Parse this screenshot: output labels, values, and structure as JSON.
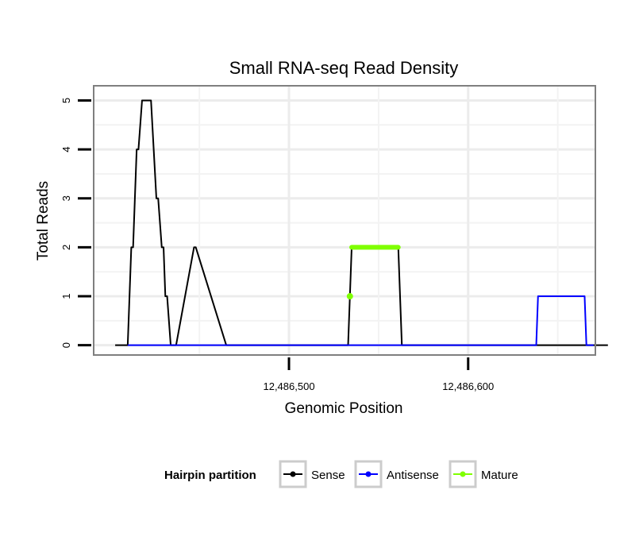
{
  "chart_data": {
    "type": "line",
    "title": "Small RNA-seq Read Density",
    "xlabel": "Genomic Position",
    "ylabel": "Total Reads",
    "xlim": [
      12486391,
      12486671
    ],
    "ylim": [
      -0.2,
      5.3
    ],
    "x_ticks": [
      12486500,
      12486600
    ],
    "x_tick_labels": [
      "12,486,500",
      "12,486,600"
    ],
    "y_ticks": [
      0,
      1,
      2,
      3,
      4,
      5
    ],
    "y_tick_labels": [
      "0",
      "1",
      "2",
      "3",
      "4",
      "5"
    ],
    "grid": true,
    "legend": {
      "title": "Hairpin partition",
      "position": "bottom",
      "entries": [
        "Sense",
        "Antisense",
        "Mature"
      ]
    },
    "series": [
      {
        "name": "Sense",
        "color": "#000000",
        "x": [
          12486403,
          12486410,
          12486412,
          12486413,
          12486415,
          12486416,
          12486418,
          12486419,
          12486422,
          12486423,
          12486426,
          12486427,
          12486429,
          12486430,
          12486431,
          12486432,
          12486434,
          12486435,
          12486436,
          12486437,
          12486447,
          12486448,
          12486465,
          12486467,
          12486488,
          12486533,
          12486535,
          12486561,
          12486563,
          12486652,
          12486654,
          12486661,
          12486663,
          12486678
        ],
        "values": [
          0,
          0,
          2,
          2,
          4,
          4,
          5,
          5,
          5,
          5,
          3,
          3,
          2,
          2,
          1,
          1,
          0,
          0,
          0,
          0,
          2,
          2,
          0,
          0,
          0,
          0,
          2,
          2,
          0,
          0,
          0,
          0,
          0,
          0
        ]
      },
      {
        "name": "Antisense",
        "color": "#0000ff",
        "x": [
          12486410,
          12486448,
          12486465,
          12486533,
          12486561,
          12486638,
          12486639,
          12486665,
          12486666,
          12486670
        ],
        "values": [
          0,
          0,
          0,
          0,
          0,
          0,
          1,
          1,
          0,
          0
        ]
      },
      {
        "name": "Mature",
        "color": "#7fff00",
        "x": [
          12486534,
          12486535,
          12486561
        ],
        "values": [
          1,
          2,
          2
        ]
      }
    ]
  }
}
